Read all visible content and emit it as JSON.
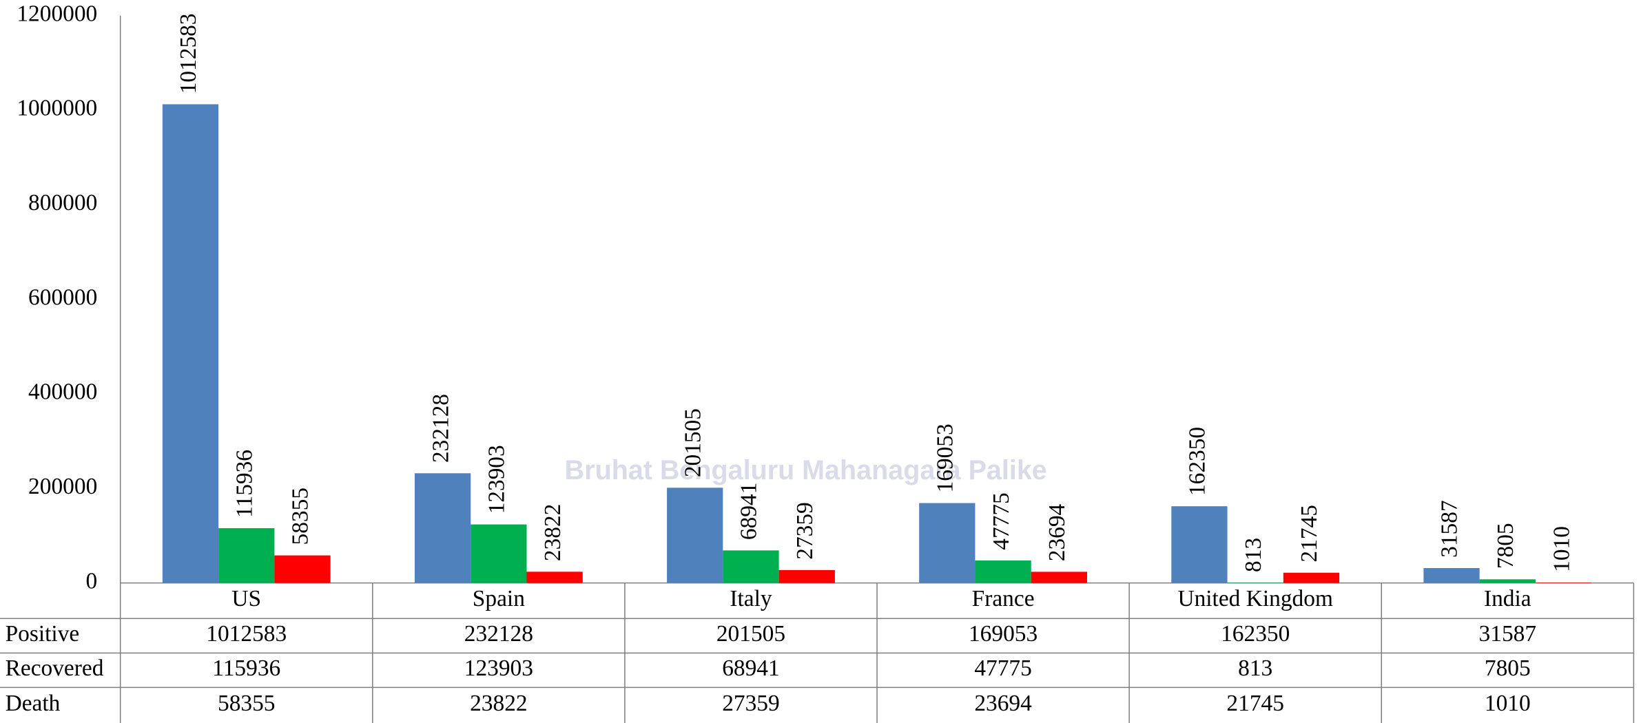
{
  "chart_data": {
    "type": "bar",
    "categories": [
      "US",
      "Spain",
      "Italy",
      "France",
      "United Kingdom",
      "India"
    ],
    "series": [
      {
        "name": "Positive",
        "color": "#4f81bd",
        "values": [
          1012583,
          232128,
          201505,
          169053,
          162350,
          31587
        ]
      },
      {
        "name": "Recovered",
        "color": "#00b050",
        "values": [
          115936,
          123903,
          68941,
          47775,
          813,
          7805
        ]
      },
      {
        "name": "Death",
        "color": "#ff0000",
        "values": [
          58355,
          23822,
          27359,
          23694,
          21745,
          1010
        ]
      }
    ],
    "ylim": [
      0,
      1200000
    ],
    "yticks": [
      0,
      200000,
      400000,
      600000,
      800000,
      1000000,
      1200000
    ],
    "grid": false,
    "watermark": "Bruhat Bengaluru Mahanagara Palike"
  }
}
